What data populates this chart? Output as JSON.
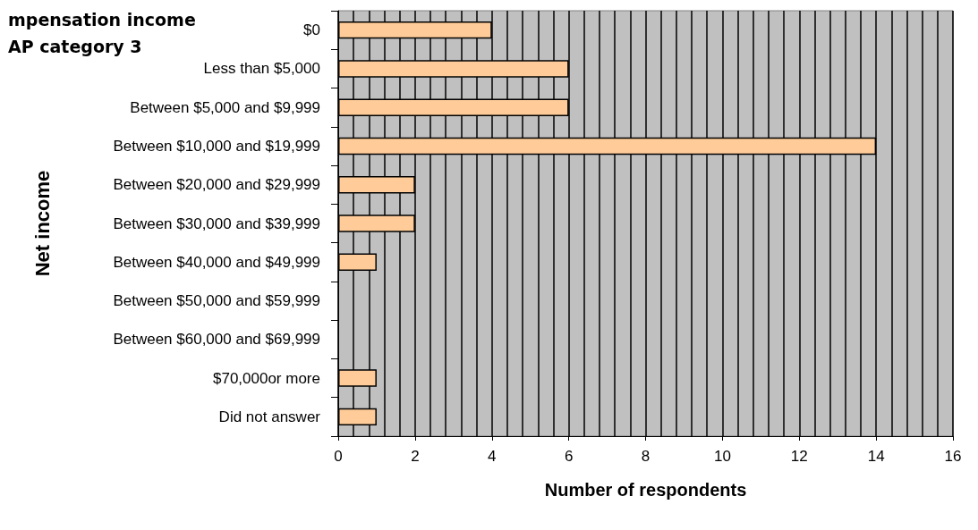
{
  "chart_data": {
    "type": "bar",
    "orientation": "horizontal",
    "title": "mpensation income\nAP category 3",
    "xlabel": "Number of respondents",
    "ylabel": "Net income",
    "categories": [
      "$0",
      "Less than $5,000",
      "Between $5,000 and $9,999",
      "Between $10,000 and $19,999",
      "Between $20,000 and $29,999",
      "Between $30,000 and $39,999",
      "Between $40,000 and $49,999",
      "Between $50,000 and $59,999",
      "Between $60,000 and $69,999",
      "$70,000or more",
      "Did not answer"
    ],
    "values": [
      4,
      6,
      6,
      14,
      2,
      2,
      1,
      0,
      0,
      1,
      1
    ],
    "color": "#ffcc99",
    "xlim": [
      0,
      16
    ],
    "xticks": [
      0,
      2,
      4,
      6,
      8,
      10,
      12,
      14,
      16
    ],
    "grid": "x"
  }
}
